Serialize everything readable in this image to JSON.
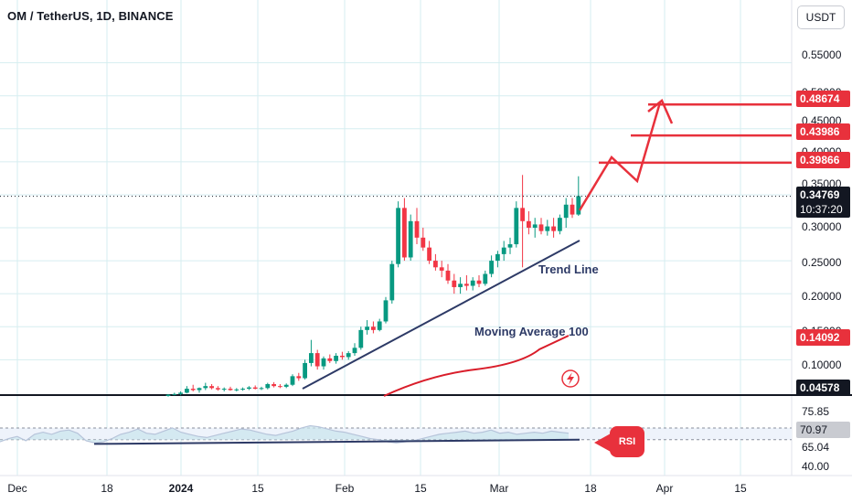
{
  "header": {
    "symbol_title": "OM / TetherUS, 1D, BINANCE",
    "currency_button": "USDT"
  },
  "price_axis": {
    "labels": [
      "0.55000",
      "0.50000",
      "0.45000",
      "0.40000",
      "0.35000",
      "0.30000",
      "0.25000",
      "0.20000",
      "0.15000",
      "0.10000"
    ]
  },
  "price_tags": {
    "level1": "0.48674",
    "level2": "0.43986",
    "level3": "0.39866",
    "current_price": "0.34769",
    "countdown": "10:37:20",
    "ma_value": "0.14092",
    "bottom_value": "0.04578"
  },
  "rsi_axis": {
    "upper": "75.85",
    "current": "70.97",
    "lower": "65.04",
    "bottom": "40.00"
  },
  "time_axis": {
    "labels": [
      "Dec",
      "18",
      "2024",
      "15",
      "Feb",
      "15",
      "Mar",
      "18",
      "Apr",
      "15"
    ]
  },
  "annotations": {
    "trend_line": "Trend Line",
    "moving_average": "Moving Average 100",
    "rsi": "RSI"
  },
  "colors": {
    "up": "#089981",
    "down": "#f23645",
    "annotation_red": "#e8313c",
    "trend_navy": "#2d3a66",
    "ma_red": "#d91d2a",
    "rsi_fill": "#c9e4ec"
  },
  "chart_data": {
    "type": "candlestick",
    "series": [
      {
        "name": "OM / TetherUS",
        "ohlc": [
          [
            0.045,
            0.048,
            0.044,
            0.047
          ],
          [
            0.047,
            0.05,
            0.046,
            0.048
          ],
          [
            0.048,
            0.052,
            0.046,
            0.05
          ],
          [
            0.05,
            0.06,
            0.049,
            0.056
          ],
          [
            0.056,
            0.062,
            0.052,
            0.054
          ],
          [
            0.054,
            0.058,
            0.05,
            0.057
          ],
          [
            0.057,
            0.065,
            0.054,
            0.06
          ],
          [
            0.06,
            0.063,
            0.055,
            0.057
          ],
          [
            0.057,
            0.06,
            0.053,
            0.055
          ],
          [
            0.055,
            0.058,
            0.052,
            0.056
          ],
          [
            0.056,
            0.059,
            0.053,
            0.054
          ],
          [
            0.054,
            0.057,
            0.052,
            0.055
          ],
          [
            0.055,
            0.058,
            0.053,
            0.056
          ],
          [
            0.056,
            0.06,
            0.054,
            0.058
          ],
          [
            0.058,
            0.061,
            0.055,
            0.056
          ],
          [
            0.056,
            0.059,
            0.054,
            0.057
          ],
          [
            0.057,
            0.065,
            0.055,
            0.063
          ],
          [
            0.063,
            0.066,
            0.058,
            0.06
          ],
          [
            0.06,
            0.063,
            0.057,
            0.059
          ],
          [
            0.059,
            0.064,
            0.057,
            0.062
          ],
          [
            0.062,
            0.078,
            0.06,
            0.075
          ],
          [
            0.075,
            0.08,
            0.068,
            0.072
          ],
          [
            0.072,
            0.1,
            0.07,
            0.095
          ],
          [
            0.095,
            0.13,
            0.09,
            0.11
          ],
          [
            0.11,
            0.115,
            0.085,
            0.09
          ],
          [
            0.09,
            0.105,
            0.085,
            0.102
          ],
          [
            0.102,
            0.108,
            0.095,
            0.098
          ],
          [
            0.098,
            0.11,
            0.094,
            0.106
          ],
          [
            0.106,
            0.112,
            0.1,
            0.104
          ],
          [
            0.104,
            0.113,
            0.1,
            0.11
          ],
          [
            0.11,
            0.125,
            0.106,
            0.118
          ],
          [
            0.118,
            0.15,
            0.115,
            0.145
          ],
          [
            0.145,
            0.16,
            0.138,
            0.15
          ],
          [
            0.15,
            0.158,
            0.14,
            0.145
          ],
          [
            0.145,
            0.162,
            0.143,
            0.158
          ],
          [
            0.158,
            0.195,
            0.155,
            0.19
          ],
          [
            0.19,
            0.25,
            0.185,
            0.245
          ],
          [
            0.245,
            0.34,
            0.24,
            0.33
          ],
          [
            0.33,
            0.345,
            0.25,
            0.255
          ],
          [
            0.255,
            0.32,
            0.25,
            0.31
          ],
          [
            0.31,
            0.33,
            0.275,
            0.285
          ],
          [
            0.285,
            0.3,
            0.265,
            0.27
          ],
          [
            0.27,
            0.28,
            0.245,
            0.25
          ],
          [
            0.25,
            0.26,
            0.235,
            0.24
          ],
          [
            0.24,
            0.25,
            0.225,
            0.235
          ],
          [
            0.235,
            0.245,
            0.215,
            0.22
          ],
          [
            0.22,
            0.23,
            0.2,
            0.21
          ],
          [
            0.21,
            0.225,
            0.2,
            0.215
          ],
          [
            0.215,
            0.228,
            0.205,
            0.212
          ],
          [
            0.212,
            0.225,
            0.205,
            0.22
          ],
          [
            0.22,
            0.228,
            0.21,
            0.215
          ],
          [
            0.215,
            0.235,
            0.212,
            0.23
          ],
          [
            0.23,
            0.258,
            0.225,
            0.25
          ],
          [
            0.25,
            0.265,
            0.24,
            0.26
          ],
          [
            0.26,
            0.28,
            0.25,
            0.27
          ],
          [
            0.27,
            0.285,
            0.26,
            0.275
          ],
          [
            0.275,
            0.34,
            0.27,
            0.33
          ],
          [
            0.33,
            0.38,
            0.24,
            0.31
          ],
          [
            0.31,
            0.325,
            0.29,
            0.3
          ],
          [
            0.3,
            0.315,
            0.285,
            0.305
          ],
          [
            0.305,
            0.315,
            0.29,
            0.295
          ],
          [
            0.295,
            0.312,
            0.288,
            0.302
          ],
          [
            0.302,
            0.315,
            0.285,
            0.295
          ],
          [
            0.295,
            0.32,
            0.29,
            0.315
          ],
          [
            0.315,
            0.345,
            0.3,
            0.335
          ],
          [
            0.335,
            0.345,
            0.315,
            0.32
          ],
          [
            0.32,
            0.378,
            0.318,
            0.348
          ]
        ]
      }
    ],
    "x_ticks": [
      "Dec",
      "18",
      "2024",
      "15",
      "Feb",
      "15",
      "Mar",
      "18",
      "Apr",
      "15"
    ],
    "ylim": [
      0.045,
      0.58
    ],
    "targets": [
      0.48674,
      0.43986,
      0.39866
    ],
    "ma100_last": 0.14092,
    "rsi_last": 70.97
  }
}
